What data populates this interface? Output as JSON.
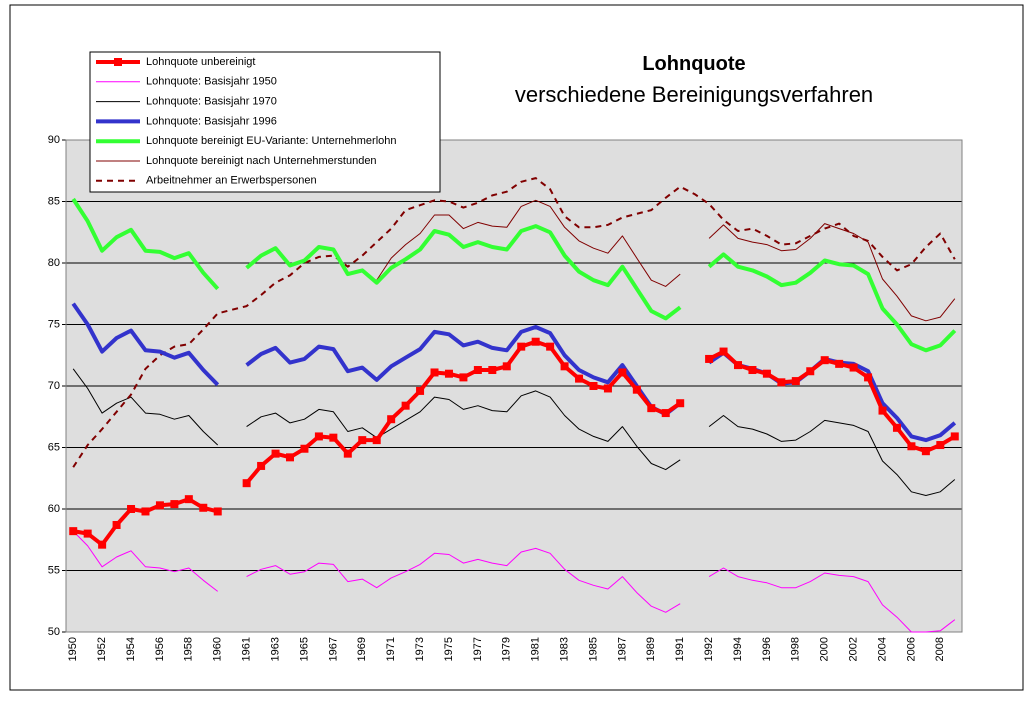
{
  "chart_data": {
    "type": "line",
    "title": "Lohnquote",
    "subtitle": "verschiedene Bereinigungsverfahren",
    "categories": [
      "1950",
      null,
      "1952",
      null,
      "1954",
      null,
      "1956",
      null,
      "1958",
      null,
      "1960",
      null,
      "1961",
      null,
      "1963",
      null,
      "1965",
      null,
      "1967",
      null,
      "1969",
      null,
      "1971",
      null,
      "1973",
      null,
      "1975",
      null,
      "1977",
      null,
      "1979",
      null,
      "1981",
      null,
      "1983",
      null,
      "1985",
      null,
      "1987",
      null,
      "1989",
      null,
      "1991",
      null,
      "1992",
      null,
      "1994",
      null,
      "1996",
      null,
      "1998",
      null,
      "2000",
      null,
      "2002",
      null,
      "2004",
      null,
      "2006",
      null,
      "2008",
      null
    ],
    "ylim": [
      50,
      90
    ],
    "yticks": [
      50,
      55,
      60,
      65,
      70,
      75,
      80,
      85,
      90
    ],
    "grid": true,
    "legend": "top-left",
    "series": [
      {
        "name": "Lohnquote unbereinigt",
        "color": "#ff0000",
        "line_width": 4,
        "marker": "square",
        "dash": "solid",
        "values": [
          58.2,
          58.0,
          57.1,
          58.7,
          60.0,
          59.8,
          60.3,
          60.4,
          60.8,
          60.1,
          59.8,
          null,
          62.1,
          63.5,
          64.5,
          64.2,
          64.9,
          65.9,
          65.8,
          64.5,
          65.6,
          65.6,
          67.3,
          68.4,
          69.6,
          71.1,
          71.0,
          70.7,
          71.3,
          71.3,
          71.6,
          73.2,
          73.6,
          73.2,
          71.6,
          70.6,
          70.0,
          69.8,
          71.1,
          69.7,
          68.2,
          67.8,
          68.6,
          null,
          72.2,
          72.8,
          71.7,
          71.3,
          71.0,
          70.3,
          70.4,
          71.2,
          72.1,
          71.8,
          71.5,
          70.7,
          68.0,
          66.6,
          65.1,
          64.7,
          65.2,
          65.9
        ]
      },
      {
        "name": "Lohnquote: Basisjahr 1950",
        "color": "#ff00ff",
        "line_width": 1,
        "marker": "none",
        "dash": "solid",
        "values": [
          58.2,
          57.0,
          55.3,
          56.1,
          56.6,
          55.3,
          55.2,
          54.9,
          55.2,
          54.2,
          53.3,
          null,
          54.5,
          55.1,
          55.4,
          54.7,
          54.9,
          55.6,
          55.5,
          54.1,
          54.3,
          53.6,
          54.4,
          54.9,
          55.5,
          56.4,
          56.3,
          55.6,
          55.9,
          55.6,
          55.4,
          56.5,
          56.8,
          56.4,
          55.1,
          54.2,
          53.8,
          53.5,
          54.5,
          53.2,
          52.1,
          51.6,
          52.3,
          null,
          54.5,
          55.2,
          54.5,
          54.2,
          54.0,
          53.6,
          53.6,
          54.1,
          54.8,
          54.6,
          54.5,
          54.1,
          52.2,
          51.2,
          50.0,
          50.0,
          50.1,
          51.0
        ]
      },
      {
        "name": "Lohnquote: Basisjahr 1970",
        "color": "#000000",
        "line_width": 1,
        "marker": "none",
        "dash": "solid",
        "values": [
          71.4,
          69.8,
          67.8,
          68.6,
          69.1,
          67.8,
          67.7,
          67.3,
          67.6,
          66.3,
          65.2,
          null,
          66.7,
          67.5,
          67.8,
          67.0,
          67.3,
          68.1,
          67.9,
          66.3,
          66.6,
          65.8,
          66.5,
          67.2,
          67.9,
          69.1,
          68.9,
          68.1,
          68.4,
          68.0,
          67.9,
          69.2,
          69.6,
          69.1,
          67.6,
          66.5,
          65.9,
          65.5,
          66.7,
          65.1,
          63.7,
          63.2,
          64.0,
          null,
          66.7,
          67.6,
          66.7,
          66.5,
          66.1,
          65.5,
          65.6,
          66.3,
          67.2,
          67.0,
          66.8,
          66.3,
          63.9,
          62.8,
          61.4,
          61.1,
          61.4,
          62.4
        ]
      },
      {
        "name": "Lohnquote: Basisjahr 1996",
        "color": "#3333cc",
        "line_width": 4,
        "marker": "none",
        "dash": "solid",
        "values": [
          76.7,
          75.0,
          72.8,
          73.9,
          74.5,
          72.9,
          72.8,
          72.3,
          72.7,
          71.3,
          70.1,
          null,
          71.7,
          72.6,
          73.1,
          71.9,
          72.2,
          73.2,
          73.0,
          71.2,
          71.5,
          70.5,
          71.6,
          72.3,
          73.0,
          74.4,
          74.2,
          73.3,
          73.6,
          73.1,
          72.9,
          74.4,
          74.8,
          74.3,
          72.5,
          71.3,
          70.7,
          70.3,
          71.7,
          70.0,
          68.3,
          67.7,
          68.6,
          null,
          71.9,
          72.7,
          71.7,
          71.4,
          71.0,
          70.2,
          70.3,
          71.2,
          72.2,
          71.9,
          71.8,
          71.2,
          68.6,
          67.4,
          65.9,
          65.6,
          66.0,
          67.0
        ]
      },
      {
        "name": "Lohnquote bereinigt EU-Variante: Unternehmerlohn",
        "color": "#33ff33",
        "line_width": 4,
        "marker": "none",
        "dash": "solid",
        "values": [
          85.2,
          83.4,
          81.0,
          82.1,
          82.7,
          81.0,
          80.9,
          80.4,
          80.8,
          79.2,
          77.9,
          null,
          79.6,
          80.6,
          81.2,
          79.8,
          80.2,
          81.3,
          81.1,
          79.1,
          79.4,
          78.4,
          79.6,
          80.3,
          81.1,
          82.6,
          82.3,
          81.3,
          81.7,
          81.3,
          81.1,
          82.6,
          83.0,
          82.5,
          80.6,
          79.3,
          78.6,
          78.2,
          79.7,
          77.9,
          76.1,
          75.5,
          76.4,
          null,
          79.7,
          80.7,
          79.7,
          79.4,
          78.9,
          78.2,
          78.4,
          79.2,
          80.2,
          79.9,
          79.8,
          79.1,
          76.3,
          75.0,
          73.4,
          72.9,
          73.3,
          74.5
        ]
      },
      {
        "name": "Lohnquote bereinigt nach Unternehmerstunden",
        "color": "#800000",
        "line_width": 1,
        "marker": "none",
        "dash": "solid",
        "values": [
          null,
          null,
          null,
          null,
          null,
          null,
          null,
          null,
          null,
          null,
          null,
          null,
          null,
          null,
          null,
          null,
          null,
          null,
          null,
          null,
          null,
          78.6,
          80.4,
          81.5,
          82.4,
          83.9,
          83.9,
          82.8,
          83.3,
          83.0,
          82.9,
          84.6,
          85.1,
          84.6,
          82.9,
          81.8,
          81.2,
          80.8,
          82.2,
          80.4,
          78.6,
          78.1,
          79.1,
          null,
          82.0,
          83.1,
          82.0,
          81.7,
          81.5,
          81.0,
          81.1,
          82.0,
          83.2,
          82.8,
          82.4,
          81.7,
          78.7,
          77.3,
          75.7,
          75.3,
          75.6,
          77.1
        ]
      },
      {
        "name": "Arbeitnehmer an Erwerbspersonen",
        "color": "#800000",
        "line_width": 2,
        "marker": "none",
        "dash": "dashed",
        "values": [
          63.4,
          65.2,
          66.5,
          67.9,
          69.3,
          71.4,
          72.5,
          73.2,
          73.4,
          74.6,
          75.9,
          76.2,
          76.5,
          77.4,
          78.4,
          79.0,
          80.0,
          80.5,
          80.6,
          79.7,
          80.6,
          81.7,
          82.8,
          84.3,
          84.7,
          85.1,
          85.0,
          84.5,
          84.9,
          85.5,
          85.8,
          86.6,
          86.9,
          86.0,
          83.8,
          82.9,
          82.9,
          83.1,
          83.7,
          84.0,
          84.3,
          85.3,
          86.2,
          85.6,
          84.8,
          83.5,
          82.6,
          82.8,
          82.2,
          81.5,
          81.6,
          82.2,
          82.8,
          83.2,
          82.2,
          81.8,
          80.5,
          79.4,
          79.9,
          81.3,
          82.4,
          80.3
        ]
      }
    ]
  }
}
